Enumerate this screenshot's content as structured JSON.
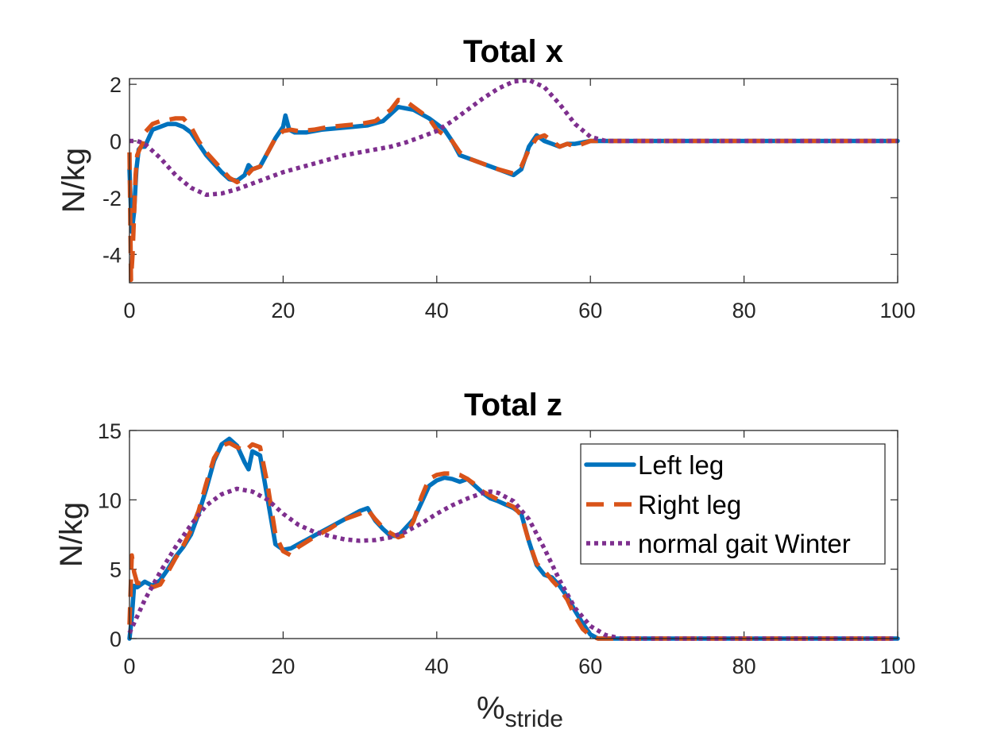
{
  "chart_data": [
    {
      "type": "line",
      "title": "Total x",
      "ylabel": "N/kg",
      "xlim": [
        0,
        100
      ],
      "ylim": [
        -5,
        2.2
      ],
      "xticks": [
        0,
        20,
        40,
        60,
        80,
        100
      ],
      "yticks": [
        -4,
        -2,
        0,
        2
      ],
      "grid": false,
      "series": [
        {
          "name": "Left leg",
          "color": "#0072BD",
          "style": "solid",
          "x": [
            0,
            0.3,
            0.6,
            0.9,
            1.2,
            1.5,
            2,
            3,
            4,
            5,
            6,
            7,
            8,
            9,
            10,
            11,
            12,
            13,
            14,
            15,
            15.5,
            16,
            17,
            18,
            19,
            20,
            20.3,
            20.8,
            21.5,
            23,
            25,
            27,
            29,
            31,
            33,
            35,
            37,
            39,
            41,
            42,
            43,
            44,
            46,
            48,
            50,
            51,
            52,
            53,
            54,
            55,
            56,
            57,
            58,
            60,
            61,
            62,
            64,
            70,
            80,
            90,
            100
          ],
          "y": [
            -1.0,
            -3.2,
            -2.5,
            -1.0,
            -0.3,
            -0.2,
            -0.2,
            0.4,
            0.5,
            0.6,
            0.6,
            0.5,
            0.3,
            -0.1,
            -0.5,
            -0.8,
            -1.1,
            -1.35,
            -1.4,
            -1.2,
            -0.85,
            -1.0,
            -0.9,
            -0.4,
            0.1,
            0.5,
            0.9,
            0.4,
            0.3,
            0.3,
            0.4,
            0.45,
            0.5,
            0.55,
            0.7,
            1.2,
            1.1,
            0.8,
            0.4,
            0.0,
            -0.5,
            -0.6,
            -0.8,
            -1.0,
            -1.2,
            -1.0,
            -0.2,
            0.2,
            0.0,
            -0.1,
            -0.2,
            -0.1,
            -0.1,
            0.0,
            0.0,
            0.0,
            0.0,
            0.0,
            0.0,
            0.0,
            0.0
          ]
        },
        {
          "name": "Right leg",
          "color": "#D95319",
          "style": "dashed",
          "x": [
            0,
            0.2,
            0.4,
            0.6,
            0.8,
            1.0,
            1.3,
            1.7,
            2,
            3,
            4,
            5,
            6,
            7,
            8,
            9,
            10,
            11,
            12,
            13,
            14,
            15,
            16,
            17,
            18,
            19,
            20,
            21,
            22,
            24,
            26,
            28,
            30,
            32,
            34,
            35,
            36,
            37,
            38,
            39,
            40,
            41,
            42,
            43,
            44,
            46,
            48,
            50,
            51,
            52,
            53,
            54,
            55,
            56,
            57,
            58,
            59,
            60,
            61,
            62,
            64,
            70,
            80,
            90,
            100
          ],
          "y": [
            -0.4,
            -4.9,
            -4.0,
            -2.6,
            -1.2,
            -0.5,
            -0.3,
            -0.1,
            0.3,
            0.6,
            0.7,
            0.75,
            0.8,
            0.8,
            0.5,
            0.0,
            -0.4,
            -0.7,
            -1.0,
            -1.3,
            -1.45,
            -1.3,
            -1.0,
            -0.9,
            -0.4,
            0.1,
            0.35,
            0.4,
            0.35,
            0.4,
            0.5,
            0.55,
            0.6,
            0.7,
            1.1,
            1.45,
            1.4,
            1.2,
            1.0,
            0.8,
            0.4,
            0.2,
            0.0,
            -0.4,
            -0.6,
            -0.8,
            -1.0,
            -1.15,
            -0.9,
            -0.3,
            0.1,
            0.2,
            0.0,
            -0.2,
            -0.1,
            -0.2,
            -0.1,
            0.0,
            0.0,
            0.0,
            0.0,
            0.0,
            0.0,
            0.0,
            0.0
          ]
        },
        {
          "name": "normal gait Winter",
          "color": "#7E2F8E",
          "style": "dotted",
          "x": [
            0,
            1,
            2,
            4,
            6,
            8,
            10,
            12,
            14,
            16,
            18,
            20,
            22,
            24,
            26,
            28,
            30,
            32,
            34,
            36,
            38,
            40,
            42,
            44,
            46,
            48,
            50,
            52,
            54,
            56,
            58,
            60,
            62,
            64,
            70,
            80,
            90,
            100
          ],
          "y": [
            0.0,
            0.0,
            -0.1,
            -0.6,
            -1.2,
            -1.65,
            -1.9,
            -1.85,
            -1.7,
            -1.5,
            -1.3,
            -1.1,
            -0.95,
            -0.8,
            -0.65,
            -0.5,
            -0.4,
            -0.3,
            -0.2,
            -0.05,
            0.15,
            0.35,
            0.7,
            1.1,
            1.5,
            1.85,
            2.1,
            2.15,
            1.9,
            1.3,
            0.6,
            0.15,
            0.0,
            0.0,
            0.0,
            0.0,
            0.0,
            0.0
          ]
        }
      ]
    },
    {
      "type": "line",
      "title": "Total z",
      "ylabel": "N/kg",
      "xlabel": "%",
      "xlabel_subscript": "stride",
      "xlim": [
        0,
        100
      ],
      "ylim": [
        0,
        15
      ],
      "xticks": [
        0,
        20,
        40,
        60,
        80,
        100
      ],
      "yticks": [
        0,
        5,
        10,
        15
      ],
      "grid": false,
      "legend": "top-right",
      "series": [
        {
          "name": "Left leg",
          "color": "#0072BD",
          "style": "solid",
          "x": [
            0,
            0.3,
            0.6,
            1,
            2,
            3,
            4,
            5,
            6,
            7,
            8,
            9,
            10,
            11,
            12,
            13,
            14,
            15,
            15.5,
            16,
            17,
            18,
            19,
            20,
            21,
            22,
            24,
            26,
            28,
            30,
            31,
            32,
            33,
            34,
            35,
            36,
            37,
            38,
            39,
            40,
            41,
            42,
            43,
            44,
            45,
            46,
            47,
            48,
            50,
            51,
            52,
            53,
            54,
            55,
            56,
            57,
            58,
            59,
            60,
            61,
            62,
            64,
            70,
            80,
            90,
            100
          ],
          "y": [
            0.0,
            1.5,
            3.8,
            3.7,
            4.1,
            3.8,
            4.2,
            5.0,
            5.9,
            6.6,
            7.5,
            9.0,
            10.8,
            12.8,
            14.0,
            14.4,
            13.9,
            12.7,
            12.2,
            13.5,
            13.2,
            10.0,
            6.8,
            6.4,
            6.5,
            6.8,
            7.4,
            8.0,
            8.6,
            9.2,
            9.4,
            8.5,
            7.9,
            7.4,
            7.4,
            8.0,
            8.6,
            9.8,
            11.0,
            11.4,
            11.6,
            11.5,
            11.3,
            11.5,
            11.0,
            10.5,
            10.1,
            9.9,
            9.4,
            9.0,
            7.0,
            5.3,
            4.6,
            4.4,
            3.8,
            3.0,
            2.0,
            1.1,
            0.3,
            0.0,
            0.0,
            0.0,
            0.0,
            0.0,
            0.0,
            0.0
          ]
        },
        {
          "name": "Right leg",
          "color": "#D95319",
          "style": "dashed",
          "x": [
            0,
            0.3,
            0.6,
            1,
            2,
            3,
            4,
            5,
            6,
            7,
            8,
            9,
            10,
            11,
            12,
            13,
            14,
            15,
            16,
            17,
            18,
            19,
            20,
            21,
            22,
            24,
            26,
            28,
            30,
            31,
            32,
            33,
            34,
            35,
            36,
            37,
            38,
            39,
            40,
            41,
            42,
            43,
            44,
            45,
            46,
            48,
            50,
            51,
            52,
            53,
            54,
            55,
            56,
            57,
            58,
            59,
            60,
            61,
            62,
            64,
            70,
            80,
            90,
            100
          ],
          "y": [
            1.0,
            6.0,
            4.8,
            4.0,
            4.0,
            3.7,
            3.9,
            4.8,
            5.8,
            6.7,
            7.8,
            9.2,
            11.2,
            13.0,
            13.9,
            14.1,
            13.8,
            13.5,
            14.0,
            13.8,
            11.0,
            7.5,
            6.3,
            6.0,
            6.6,
            7.3,
            7.9,
            8.6,
            9.0,
            9.3,
            8.6,
            8.0,
            7.6,
            7.3,
            7.5,
            8.5,
            10.2,
            11.5,
            11.8,
            11.9,
            11.9,
            11.8,
            11.5,
            11.1,
            10.6,
            10.0,
            9.5,
            8.9,
            7.0,
            5.4,
            4.9,
            4.2,
            3.6,
            2.8,
            1.6,
            0.7,
            0.2,
            0.0,
            0.0,
            0.0,
            0.0,
            0.0,
            0.0,
            0.0
          ]
        },
        {
          "name": "normal gait Winter",
          "color": "#7E2F8E",
          "style": "dotted",
          "x": [
            0,
            1,
            2,
            4,
            6,
            8,
            10,
            12,
            14,
            16,
            18,
            20,
            22,
            24,
            26,
            28,
            30,
            32,
            34,
            36,
            38,
            40,
            42,
            44,
            46,
            47,
            48,
            50,
            52,
            54,
            56,
            58,
            60,
            62,
            64,
            70,
            80,
            90,
            100
          ],
          "y": [
            0.4,
            1.6,
            2.8,
            4.8,
            6.6,
            8.2,
            9.6,
            10.4,
            10.8,
            10.6,
            10.0,
            9.0,
            8.2,
            7.7,
            7.4,
            7.15,
            7.05,
            7.1,
            7.3,
            7.7,
            8.3,
            9.0,
            9.6,
            10.1,
            10.5,
            10.6,
            10.5,
            9.9,
            8.6,
            6.5,
            4.2,
            2.2,
            0.9,
            0.25,
            0.0,
            0.0,
            0.0,
            0.0,
            0.0
          ]
        }
      ]
    }
  ]
}
